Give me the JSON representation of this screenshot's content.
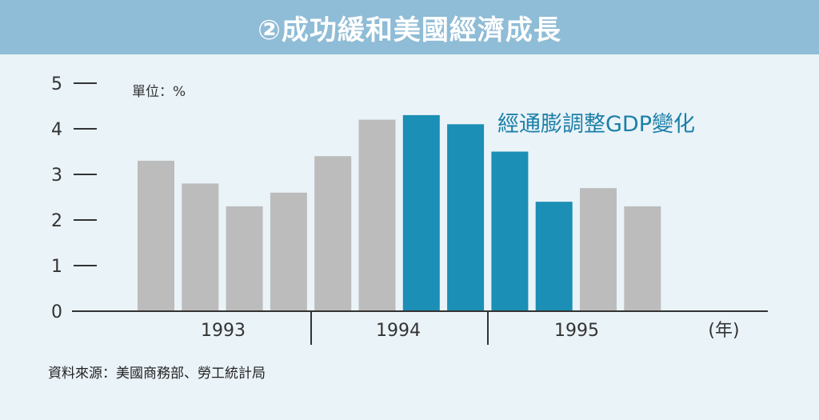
{
  "title": "②成功緩和美國經濟成長",
  "source": "資料來源：美國商務部、勞工統計局",
  "colors": {
    "title_bg": "#8fbcd6",
    "background": "#eaf3f8",
    "bar_gray": "#bcbcbc",
    "bar_blue": "#1b8fb5",
    "highlight_text": "#1b7fa8",
    "axis": "#333333"
  },
  "chart_data": {
    "type": "bar",
    "unit_label": "單位：%",
    "annotation": "經通膨調整GDP變化",
    "x_unit": "(年)",
    "years": [
      "1993",
      "1994",
      "1995"
    ],
    "values": [
      3.3,
      2.8,
      2.3,
      2.6,
      3.4,
      4.2,
      4.3,
      4.1,
      3.5,
      2.4,
      2.7,
      2.3
    ],
    "highlight": [
      false,
      false,
      false,
      false,
      false,
      false,
      true,
      true,
      true,
      true,
      false,
      false
    ],
    "ylim": [
      0,
      5
    ],
    "yticks": [
      "0",
      "1",
      "2",
      "3",
      "4",
      "5"
    ],
    "grid": false
  }
}
